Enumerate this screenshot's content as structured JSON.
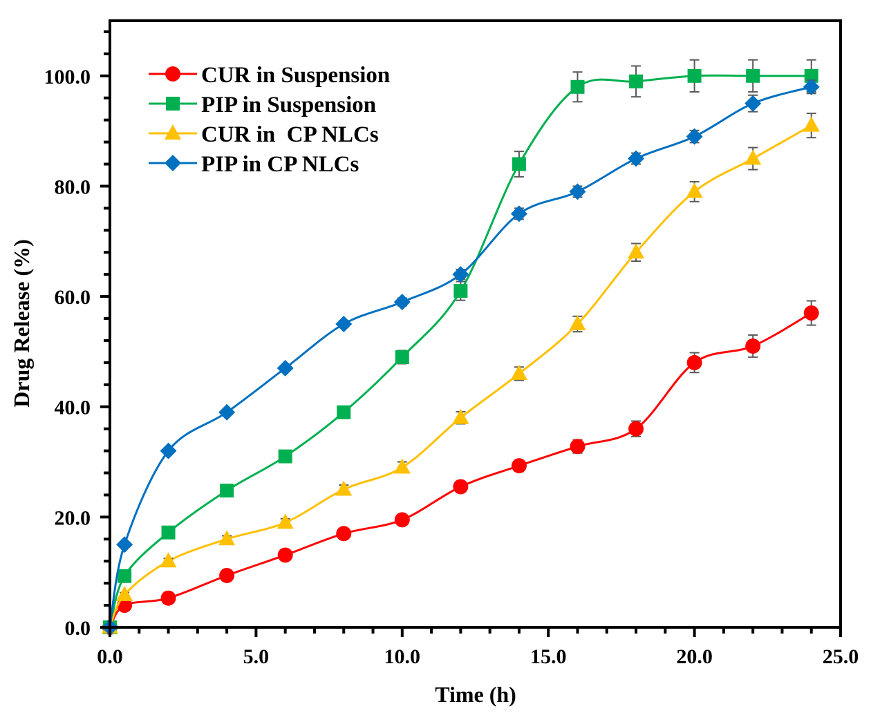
{
  "chart_data": {
    "type": "line",
    "title": "",
    "xlabel": "Time (h)",
    "ylabel": "Drug Release (%)",
    "xlim": [
      0,
      25
    ],
    "ylim": [
      0,
      110
    ],
    "x_major_ticks": [
      0,
      5,
      10,
      15,
      20,
      25
    ],
    "x_tick_labels": [
      "0.0",
      "5.0",
      "10.0",
      "15.0",
      "20.0",
      "25.0"
    ],
    "x_minor_step": 1,
    "y_major_ticks": [
      0,
      20,
      40,
      60,
      80,
      100
    ],
    "y_tick_labels": [
      "0.0",
      "20.0",
      "40.0",
      "60.0",
      "80.0",
      "100.0"
    ],
    "y_minor_step": 4,
    "grid": false,
    "smooth_lines": true,
    "legend_position": "top-left",
    "x": [
      0,
      0.5,
      2,
      4,
      6,
      8,
      10,
      12,
      14,
      16,
      18,
      20,
      22,
      24
    ],
    "series": [
      {
        "name": "CUR in Suspension",
        "color": "#ff0000",
        "marker": "circle",
        "values": [
          0,
          4.0,
          5.3,
          9.4,
          13.1,
          17.0,
          19.5,
          25.5,
          29.3,
          32.8,
          36.0,
          48.0,
          51.0,
          57.0
        ],
        "errors": [
          0,
          0.3,
          0.4,
          0.5,
          0.6,
          0.7,
          0.8,
          0.9,
          1.0,
          1.2,
          1.4,
          1.8,
          2.0,
          2.2
        ]
      },
      {
        "name": "PIP in Suspension",
        "color": "#00b050",
        "marker": "square",
        "values": [
          0,
          9.3,
          17.2,
          24.8,
          31.0,
          39.0,
          49.0,
          61.0,
          84.0,
          98.0,
          99.0,
          100.0,
          100.0,
          100.0
        ],
        "errors": [
          0,
          0.4,
          0.5,
          0.6,
          0.7,
          0.9,
          1.2,
          1.7,
          2.3,
          2.7,
          2.8,
          2.9,
          2.9,
          2.9
        ]
      },
      {
        "name": "CUR in  CP NLCs",
        "color": "#ffc000",
        "marker": "triangle",
        "values": [
          0,
          5.9,
          12.0,
          16.0,
          19.0,
          25.0,
          29.0,
          38.0,
          46.0,
          55.0,
          68.0,
          79.0,
          85.0,
          91.0
        ],
        "errors": [
          0,
          0.4,
          0.5,
          0.6,
          0.7,
          0.8,
          1.0,
          1.1,
          1.2,
          1.4,
          1.6,
          1.8,
          2.0,
          2.2
        ]
      },
      {
        "name": "PIP in CP NLCs",
        "color": "#0070c0",
        "marker": "diamond",
        "values": [
          0,
          15.0,
          32.0,
          39.0,
          47.0,
          55.0,
          59.0,
          64.0,
          75.0,
          79.0,
          85.0,
          89.0,
          95.0,
          98.0
        ],
        "errors": [
          0,
          0.3,
          0.4,
          0.5,
          0.5,
          0.6,
          0.7,
          0.9,
          1.0,
          1.0,
          1.0,
          1.1,
          1.5,
          1.2
        ]
      }
    ]
  }
}
